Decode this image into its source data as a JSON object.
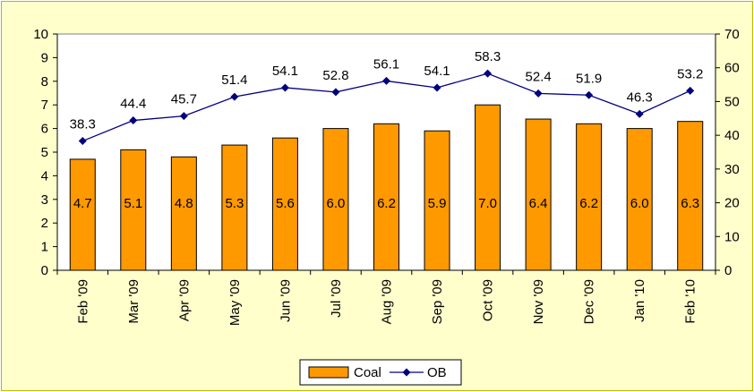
{
  "chart_data": {
    "type": "bar+line",
    "categories": [
      "Feb '09",
      "Mar '09",
      "Apr '09",
      "May '09",
      "Jun '09",
      "Jul '09",
      "Aug '09",
      "Sep '09",
      "Oct '09",
      "Nov '09",
      "Dec '09",
      "Jan '10",
      "Feb '10"
    ],
    "series": [
      {
        "name": "Coal",
        "type": "bar",
        "axis": "left",
        "color": "#ff9900",
        "values": [
          4.7,
          5.1,
          4.8,
          5.3,
          5.6,
          6.0,
          6.2,
          5.9,
          7.0,
          6.4,
          6.2,
          6.0,
          6.3
        ],
        "labels": [
          "4.7",
          "5.1",
          "4.8",
          "5.3",
          "5.6",
          "6.0",
          "6.2",
          "5.9",
          "7.0",
          "6.4",
          "6.2",
          "6.0",
          "6.3"
        ]
      },
      {
        "name": "OB",
        "type": "line",
        "axis": "right",
        "color": "#000080",
        "marker": "diamond",
        "values": [
          38.3,
          44.4,
          45.7,
          51.4,
          54.1,
          52.8,
          56.1,
          54.1,
          58.3,
          52.4,
          51.9,
          46.3,
          53.2
        ],
        "labels": [
          "38.3",
          "44.4",
          "45.7",
          "51.4",
          "54.1",
          "52.8",
          "56.1",
          "54.1",
          "58.3",
          "52.4",
          "51.9",
          "46.3",
          "53.2"
        ]
      }
    ],
    "y_left": {
      "min": 0,
      "max": 10,
      "step": 1,
      "ticks": [
        "0",
        "1",
        "2",
        "3",
        "4",
        "5",
        "6",
        "7",
        "8",
        "9",
        "10"
      ]
    },
    "y_right": {
      "min": 0,
      "max": 70,
      "step": 10,
      "ticks": [
        "0",
        "10",
        "20",
        "30",
        "40",
        "50",
        "60",
        "70"
      ]
    },
    "grid": false,
    "legend": {
      "position": "bottom",
      "entries": [
        "Coal",
        "OB"
      ]
    },
    "background": "#ffffcc",
    "plot_background": "#ffffff"
  }
}
